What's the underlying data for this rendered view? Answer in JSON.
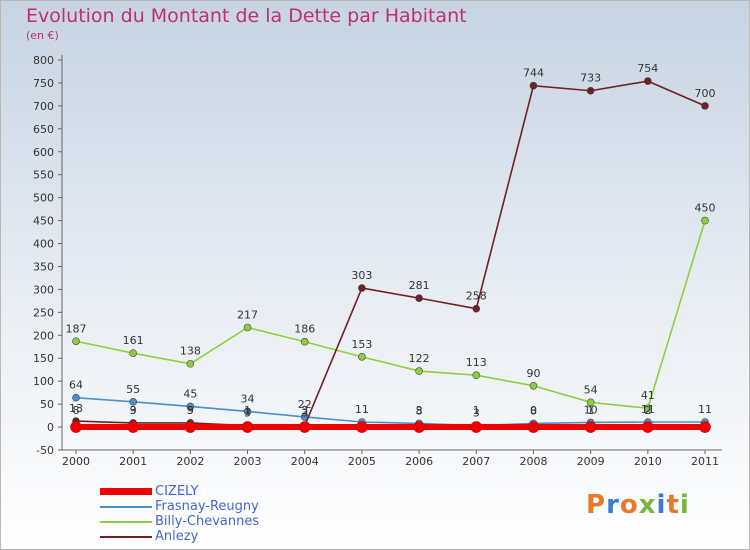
{
  "header": {
    "title": "Evolution du Montant de la Dette par Habitant",
    "unit": "(en €)"
  },
  "logo": {
    "text": "Proxiti",
    "colors": [
      "#e8792a",
      "#3a7bd5",
      "#e8792a",
      "#7ab63e",
      "#3a7bd5",
      "#e8792a",
      "#7ab63e"
    ]
  },
  "chart_data": {
    "type": "line",
    "title": "Evolution du Montant de la Dette par Habitant",
    "ylabel": "(en €)",
    "xlabel": "",
    "x": [
      "2000",
      "2001",
      "2002",
      "2003",
      "2004",
      "2005",
      "2006",
      "2007",
      "2008",
      "2009",
      "2010",
      "2011"
    ],
    "ylim": [
      -50,
      800
    ],
    "yticks": [
      -50,
      0,
      50,
      100,
      150,
      200,
      250,
      300,
      350,
      400,
      450,
      500,
      550,
      600,
      650,
      700,
      750,
      800
    ],
    "grid": false,
    "legend_position": "bottom-left",
    "series": [
      {
        "name": "CIZELY",
        "color": "#ee0000",
        "values": [
          0,
          0,
          0,
          0,
          0,
          0,
          0,
          0,
          0,
          0,
          0,
          0
        ],
        "labels": []
      },
      {
        "name": "Frasnay-Reugny",
        "color": "#4a90c8",
        "values": [
          64,
          55,
          45,
          34,
          22,
          11,
          8,
          3,
          8,
          10,
          11,
          11
        ],
        "labels": [
          "64",
          "55",
          "45",
          "34",
          "22",
          "11",
          "8",
          "3",
          "8",
          "10",
          "11",
          "11"
        ]
      },
      {
        "name": "Billy-Chevannes",
        "color": "#8ccf3c",
        "values": [
          187,
          161,
          138,
          217,
          186,
          153,
          122,
          113,
          90,
          54,
          41,
          450
        ],
        "labels": [
          "187",
          "161",
          "138",
          "217",
          "186",
          "153",
          "122",
          "113",
          "90",
          "54",
          "41",
          "450"
        ]
      },
      {
        "name": "Anlezy",
        "color": "#702020",
        "values": [
          13,
          9,
          9,
          3,
          3,
          303,
          281,
          258,
          744,
          733,
          754,
          700
        ],
        "labels": [
          "13",
          "9",
          "9",
          "3",
          "3",
          "303",
          "281",
          "258",
          "744",
          "733",
          "754",
          "700"
        ]
      }
    ],
    "extra_labels": [
      "8",
      "3",
      "5",
      "1",
      "3",
      "3",
      "1",
      "0",
      "1",
      "2"
    ]
  }
}
